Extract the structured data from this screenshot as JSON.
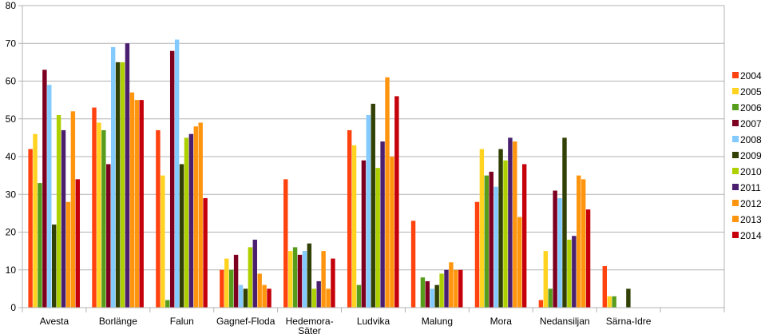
{
  "chart_data": {
    "type": "bar",
    "title": "",
    "xlabel": "",
    "ylabel": "",
    "ylim": [
      0,
      80
    ],
    "yticks": [
      0,
      10,
      20,
      30,
      40,
      50,
      60,
      70,
      80
    ],
    "grid": true,
    "legend_position": "right",
    "categories": [
      "Avesta",
      "Borlänge",
      "Falun",
      "Gagnef-Floda",
      "Hedemora-Säter",
      "Ludvika",
      "Malung",
      "Mora",
      "Nedansiljan",
      "Särna-Idre"
    ],
    "category_labels": [
      [
        "Avesta"
      ],
      [
        "Borlänge"
      ],
      [
        "Falun"
      ],
      [
        "Gagnef-Floda"
      ],
      [
        "Hedemora-",
        "Säter"
      ],
      [
        "Ludvika"
      ],
      [
        "Malung"
      ],
      [
        "Mora"
      ],
      [
        "Nedansiljan"
      ],
      [
        "Särna-Idre"
      ]
    ],
    "series": [
      {
        "name": "2004",
        "color": "#ff420e",
        "values": [
          42,
          53,
          47,
          10,
          34,
          47,
          23,
          28,
          2,
          11
        ]
      },
      {
        "name": "2005",
        "color": "#ffd320",
        "values": [
          46,
          49,
          35,
          13,
          15,
          43,
          0,
          42,
          15,
          3
        ]
      },
      {
        "name": "2006",
        "color": "#579d1c",
        "values": [
          33,
          47,
          2,
          10,
          16,
          6,
          8,
          35,
          5,
          3
        ]
      },
      {
        "name": "2007",
        "color": "#7e0021",
        "values": [
          63,
          38,
          68,
          14,
          14,
          39,
          7,
          36,
          31,
          0
        ]
      },
      {
        "name": "2008",
        "color": "#83caff",
        "values": [
          59,
          69,
          71,
          6,
          15,
          51,
          5,
          32,
          29,
          0
        ]
      },
      {
        "name": "2009",
        "color": "#314004",
        "values": [
          22,
          65,
          38,
          5,
          17,
          54,
          6,
          42,
          45,
          5
        ]
      },
      {
        "name": "2010",
        "color": "#aecf00",
        "values": [
          51,
          65,
          45,
          16,
          5,
          37,
          9,
          39,
          18,
          0
        ]
      },
      {
        "name": "2011",
        "color": "#4b1f6f",
        "values": [
          47,
          70,
          46,
          18,
          7,
          44,
          10,
          45,
          19,
          0
        ]
      },
      {
        "name": "2012",
        "color": "#ff950e",
        "values": [
          28,
          57,
          48,
          9,
          15,
          61,
          12,
          44,
          35,
          0
        ]
      },
      {
        "name": "2013",
        "color": "#ff950e",
        "values": [
          52,
          55,
          49,
          6,
          5,
          40,
          10,
          24,
          34,
          0
        ]
      },
      {
        "name": "2014",
        "color": "#c5000b",
        "values": [
          34,
          55,
          29,
          5,
          13,
          56,
          10,
          38,
          26,
          0
        ]
      }
    ]
  }
}
